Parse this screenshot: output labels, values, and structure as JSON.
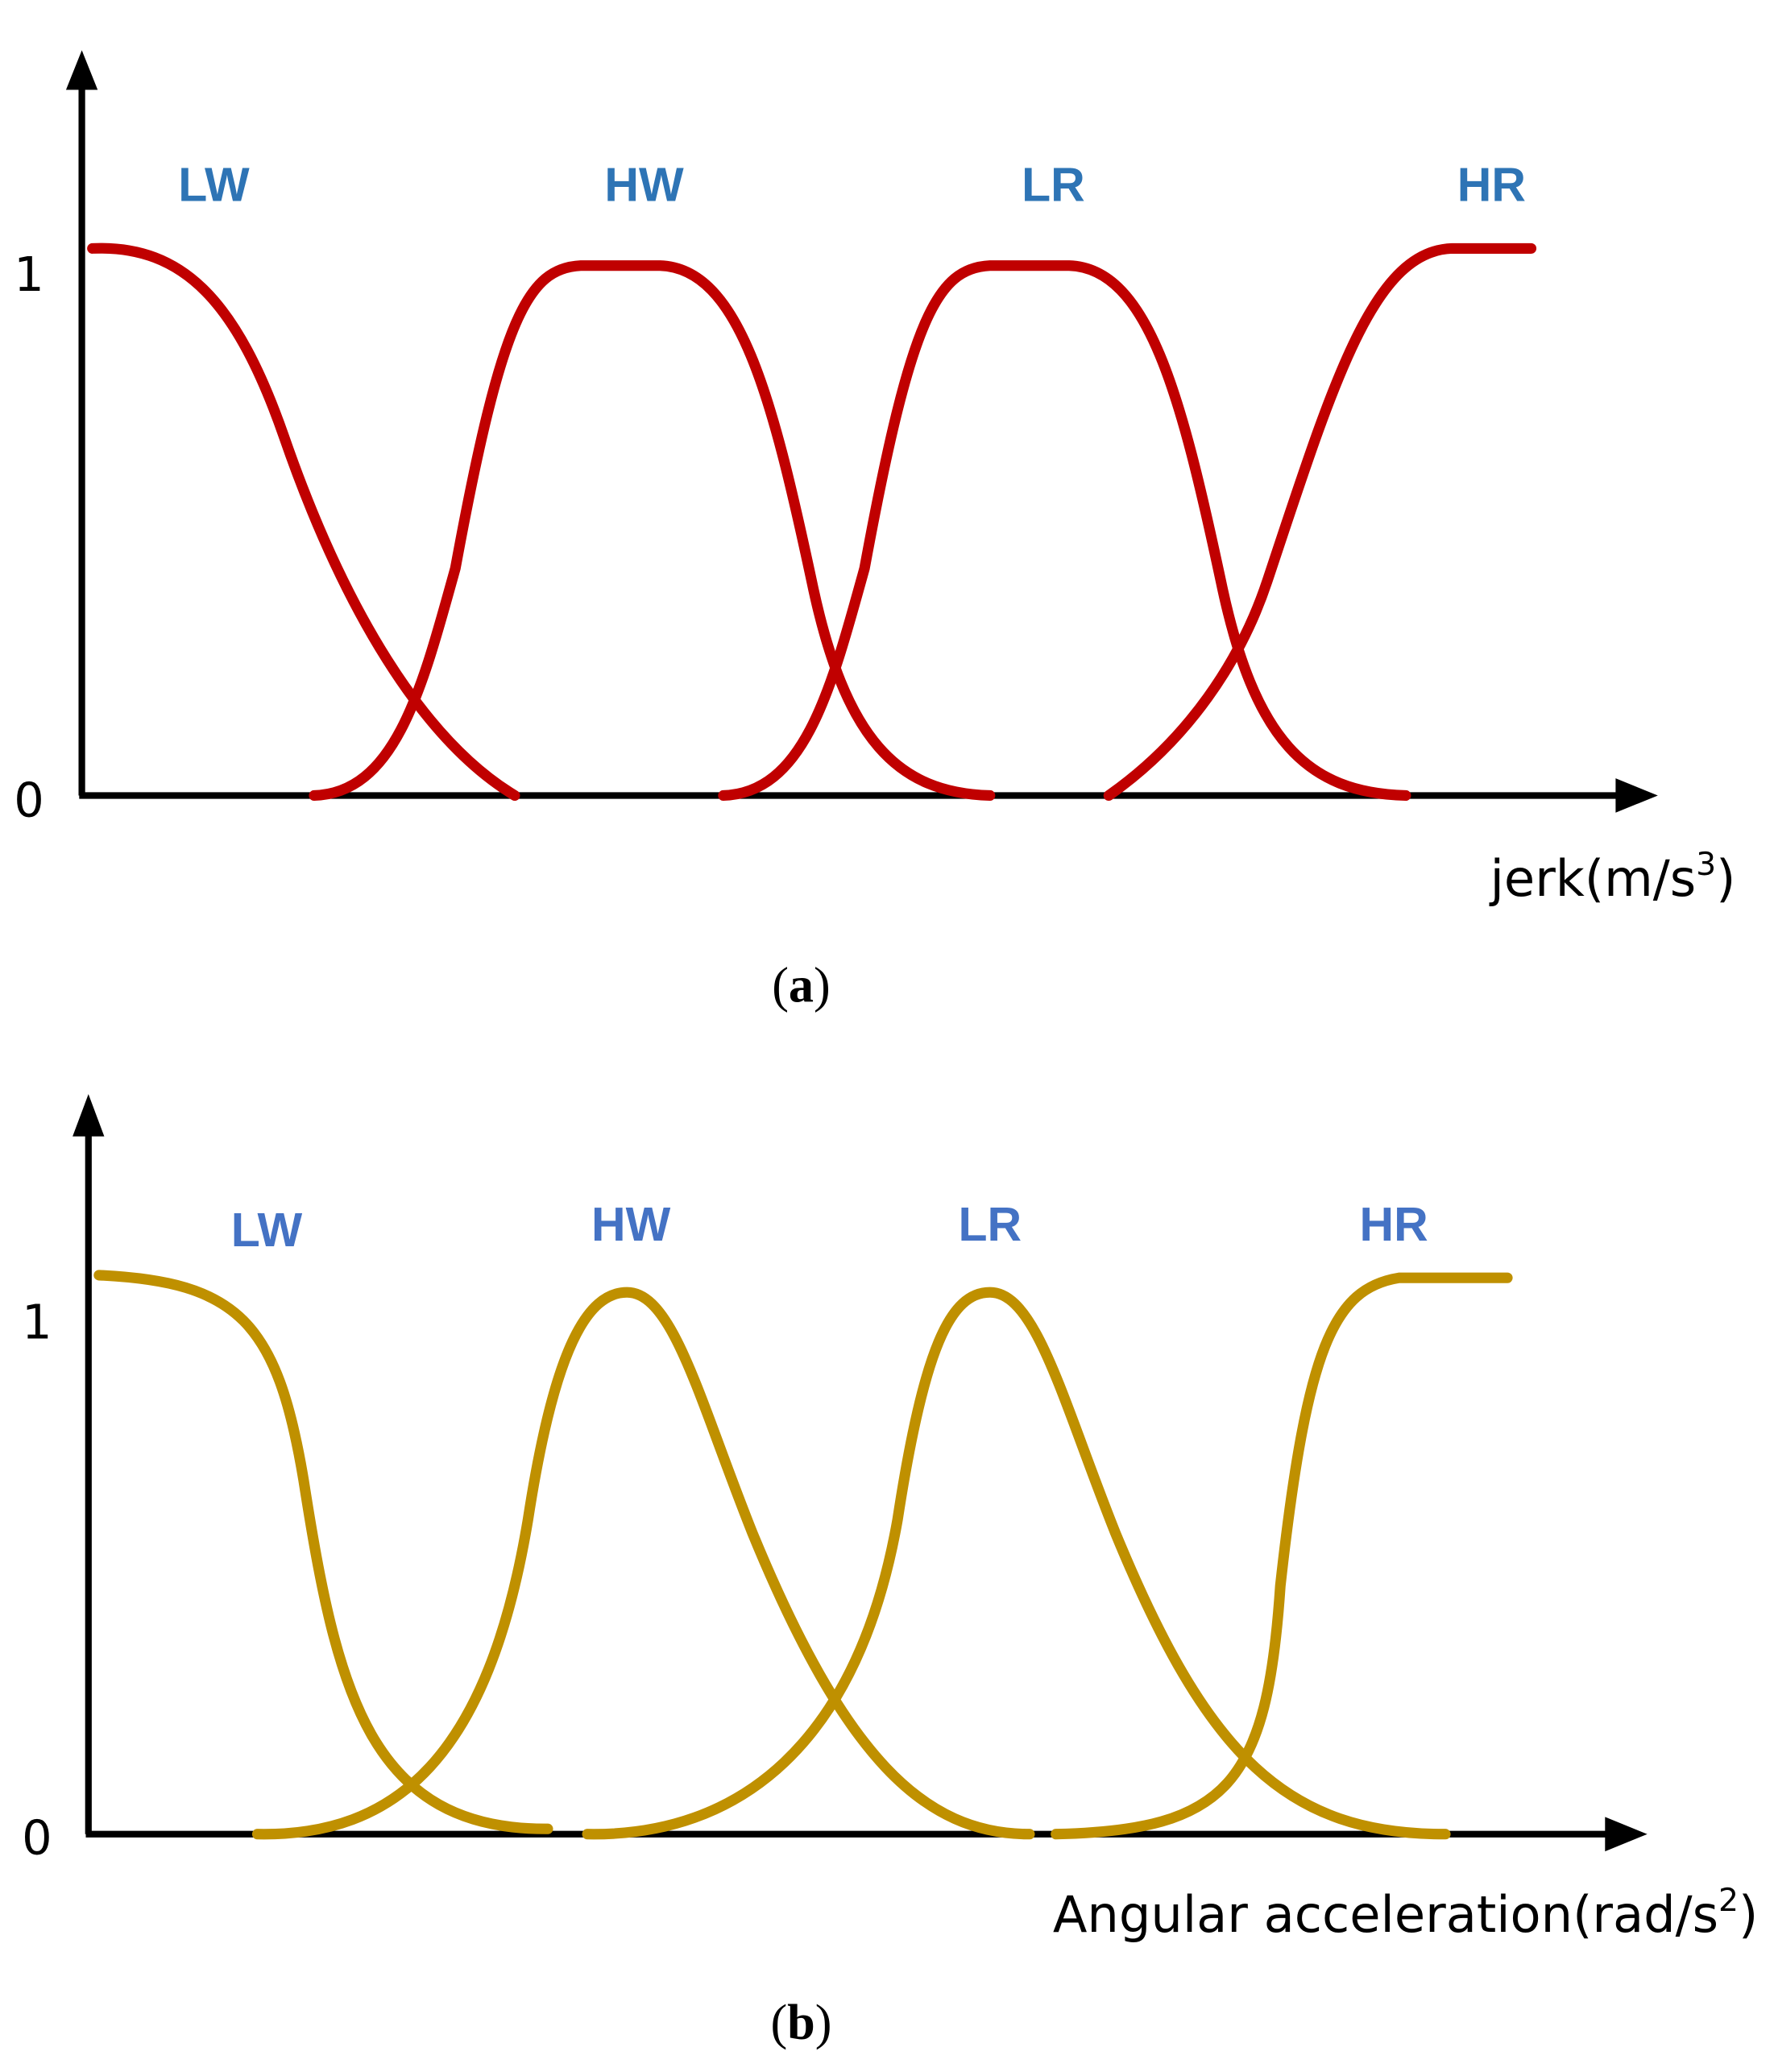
{
  "panel_a": {
    "y_labels": [
      "1",
      "0"
    ],
    "curve_labels": [
      "LW",
      "HW",
      "LR",
      "HR"
    ],
    "x_axis_label": [
      "jerk(m/s",
      "3",
      ")"
    ],
    "caption": [
      "(",
      "a",
      ")"
    ]
  },
  "panel_b": {
    "y_labels": [
      "1",
      "0"
    ],
    "curve_labels": [
      "LW",
      "HW",
      "LR",
      "HR"
    ],
    "x_axis_label": [
      "Angular acceleration(rad/s",
      "2",
      ")"
    ],
    "caption": [
      "(",
      "b",
      ")"
    ]
  }
}
